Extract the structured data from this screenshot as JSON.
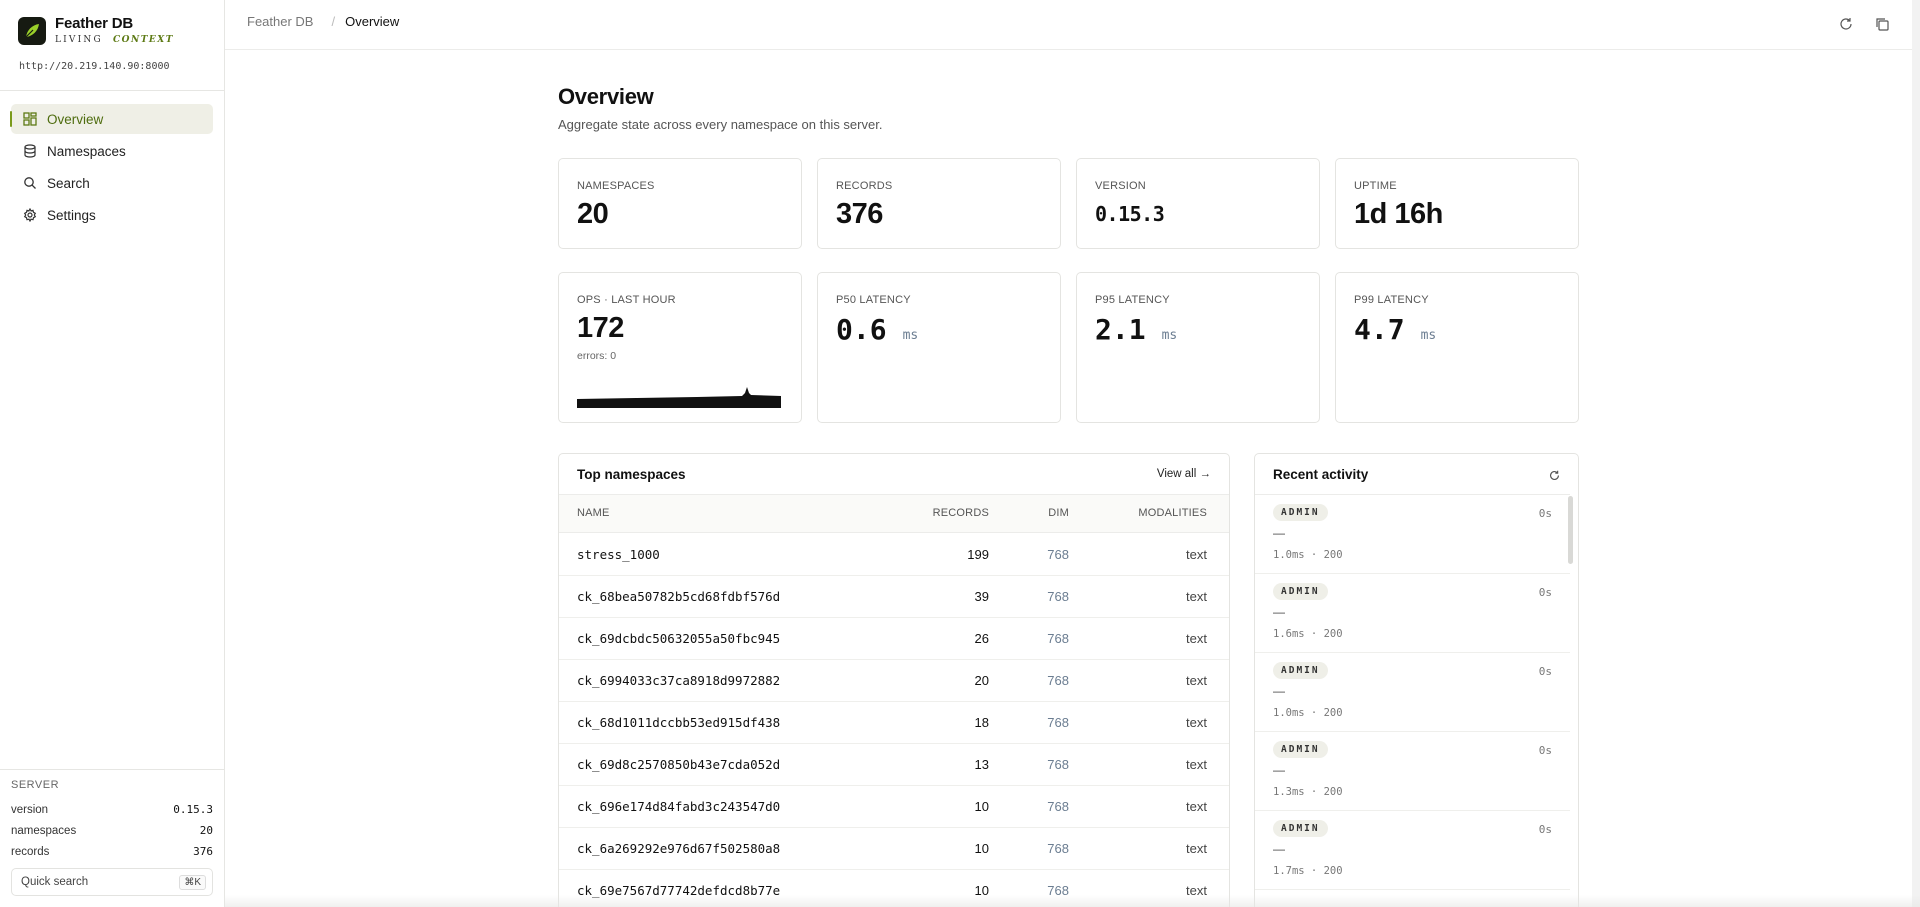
{
  "brand": {
    "name": "Feather DB",
    "tag_plain": "LIVING",
    "tag_accent": "CONTEXT",
    "server_url": "http://20.219.140.90:8000"
  },
  "nav": [
    {
      "label": "Overview",
      "icon": "grid-icon"
    },
    {
      "label": "Namespaces",
      "icon": "database-icon"
    },
    {
      "label": "Search",
      "icon": "search-icon"
    },
    {
      "label": "Settings",
      "icon": "gear-icon"
    }
  ],
  "server": {
    "heading": "SERVER",
    "version_label": "version",
    "version": "0.15.3",
    "namespaces_label": "namespaces",
    "namespaces": "20",
    "records_label": "records",
    "records": "376"
  },
  "quick_search": {
    "label": "Quick search",
    "shortcut": "⌘K"
  },
  "breadcrumb": {
    "root": "Feather DB",
    "sep": "/",
    "current": "Overview"
  },
  "page": {
    "title": "Overview",
    "subtitle": "Aggregate state across every namespace on this server."
  },
  "stats": {
    "namespaces": {
      "label": "NAMESPACES",
      "value": "20"
    },
    "records": {
      "label": "RECORDS",
      "value": "376"
    },
    "version": {
      "label": "VERSION",
      "value": "0.15.3"
    },
    "uptime": {
      "label": "UPTIME",
      "value": "1d 16h"
    },
    "ops": {
      "label": "OPS · LAST HOUR",
      "value": "172",
      "errors": "errors: 0"
    },
    "p50": {
      "label": "P50 LATENCY",
      "value": "0.6",
      "unit": "ms"
    },
    "p95": {
      "label": "P95 LATENCY",
      "value": "2.1",
      "unit": "ms"
    },
    "p99": {
      "label": "P99 LATENCY",
      "value": "4.7",
      "unit": "ms"
    }
  },
  "top_namespaces": {
    "title": "Top namespaces",
    "view_all": "View all →",
    "columns": {
      "name": "NAME",
      "records": "RECORDS",
      "dim": "DIM",
      "modalities": "MODALITIES"
    },
    "rows": [
      {
        "name": "stress_1000",
        "records": "199",
        "dim": "768",
        "modalities": "text"
      },
      {
        "name": "ck_68bea50782b5cd68fdbf576d",
        "records": "39",
        "dim": "768",
        "modalities": "text"
      },
      {
        "name": "ck_69dcbdc50632055a50fbc945",
        "records": "26",
        "dim": "768",
        "modalities": "text"
      },
      {
        "name": "ck_6994033c37ca8918d9972882",
        "records": "20",
        "dim": "768",
        "modalities": "text"
      },
      {
        "name": "ck_68d1011dccbb53ed915df438",
        "records": "18",
        "dim": "768",
        "modalities": "text"
      },
      {
        "name": "ck_69d8c2570850b43e7cda052d",
        "records": "13",
        "dim": "768",
        "modalities": "text"
      },
      {
        "name": "ck_696e174d84fabd3c243547d0",
        "records": "10",
        "dim": "768",
        "modalities": "text"
      },
      {
        "name": "ck_6a269292e976d67f502580a8",
        "records": "10",
        "dim": "768",
        "modalities": "text"
      },
      {
        "name": "ck_69e7567d77742defdcd8b77e",
        "records": "10",
        "dim": "768",
        "modalities": "text"
      }
    ]
  },
  "recent_activity": {
    "title": "Recent activity",
    "items": [
      {
        "badge": "ADMIN",
        "time": "0s",
        "detail": "—",
        "meta": "1.0ms · 200"
      },
      {
        "badge": "ADMIN",
        "time": "0s",
        "detail": "—",
        "meta": "1.6ms · 200"
      },
      {
        "badge": "ADMIN",
        "time": "0s",
        "detail": "—",
        "meta": "1.0ms · 200"
      },
      {
        "badge": "ADMIN",
        "time": "0s",
        "detail": "—",
        "meta": "1.3ms · 200"
      },
      {
        "badge": "ADMIN",
        "time": "0s",
        "detail": "—",
        "meta": "1.7ms · 200"
      }
    ]
  },
  "colors": {
    "accent": "#5d7a14",
    "active_bg": "#efefe6",
    "muted_blue": "#6b7d91"
  }
}
